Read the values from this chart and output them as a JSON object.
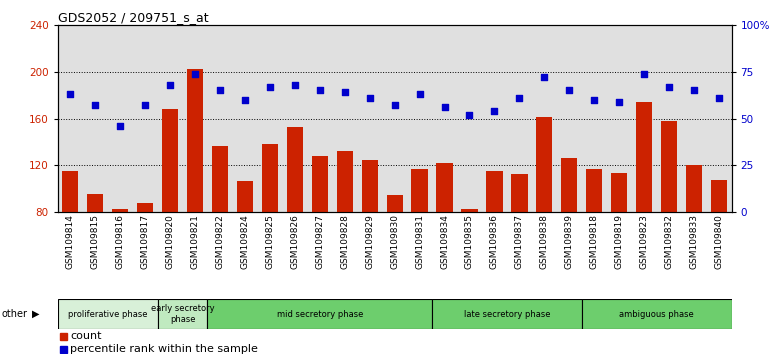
{
  "title": "GDS2052 / 209751_s_at",
  "samples": [
    "GSM109814",
    "GSM109815",
    "GSM109816",
    "GSM109817",
    "GSM109820",
    "GSM109821",
    "GSM109822",
    "GSM109824",
    "GSM109825",
    "GSM109826",
    "GSM109827",
    "GSM109828",
    "GSM109829",
    "GSM109830",
    "GSM109831",
    "GSM109834",
    "GSM109835",
    "GSM109836",
    "GSM109837",
    "GSM109838",
    "GSM109839",
    "GSM109818",
    "GSM109819",
    "GSM109823",
    "GSM109832",
    "GSM109833",
    "GSM109840"
  ],
  "counts": [
    115,
    96,
    83,
    88,
    168,
    202,
    137,
    107,
    138,
    153,
    128,
    132,
    125,
    95,
    117,
    122,
    83,
    115,
    113,
    161,
    126,
    117,
    114,
    174,
    158,
    120,
    108
  ],
  "percentiles": [
    63,
    57,
    46,
    57,
    68,
    74,
    65,
    60,
    67,
    68,
    65,
    64,
    61,
    57,
    63,
    56,
    52,
    54,
    61,
    72,
    65,
    60,
    59,
    74,
    67,
    65,
    61
  ],
  "phases": [
    {
      "label": "proliferative phase",
      "start": 0,
      "end": 4,
      "color": "#d8f0d8"
    },
    {
      "label": "early secretory\nphase",
      "start": 4,
      "end": 6,
      "color": "#c0eac0"
    },
    {
      "label": "mid secretory phase",
      "start": 6,
      "end": 15,
      "color": "#6dce6d"
    },
    {
      "label": "late secretory phase",
      "start": 15,
      "end": 21,
      "color": "#6dce6d"
    },
    {
      "label": "ambiguous phase",
      "start": 21,
      "end": 27,
      "color": "#6dce6d"
    }
  ],
  "bar_color": "#cc2200",
  "dot_color": "#0000cc",
  "ylim_left": [
    80,
    240
  ],
  "ylim_right": [
    0,
    100
  ],
  "yticks_left": [
    80,
    120,
    160,
    200,
    240
  ],
  "yticks_right": [
    0,
    25,
    50,
    75,
    100
  ],
  "ytick_labels_right": [
    "0",
    "25",
    "50",
    "75",
    "100%"
  ],
  "background_color": "#e0e0e0",
  "title_fontsize": 9,
  "axis_fontsize": 7.5,
  "legend_fontsize": 8,
  "tick_label_fontsize": 6.5
}
